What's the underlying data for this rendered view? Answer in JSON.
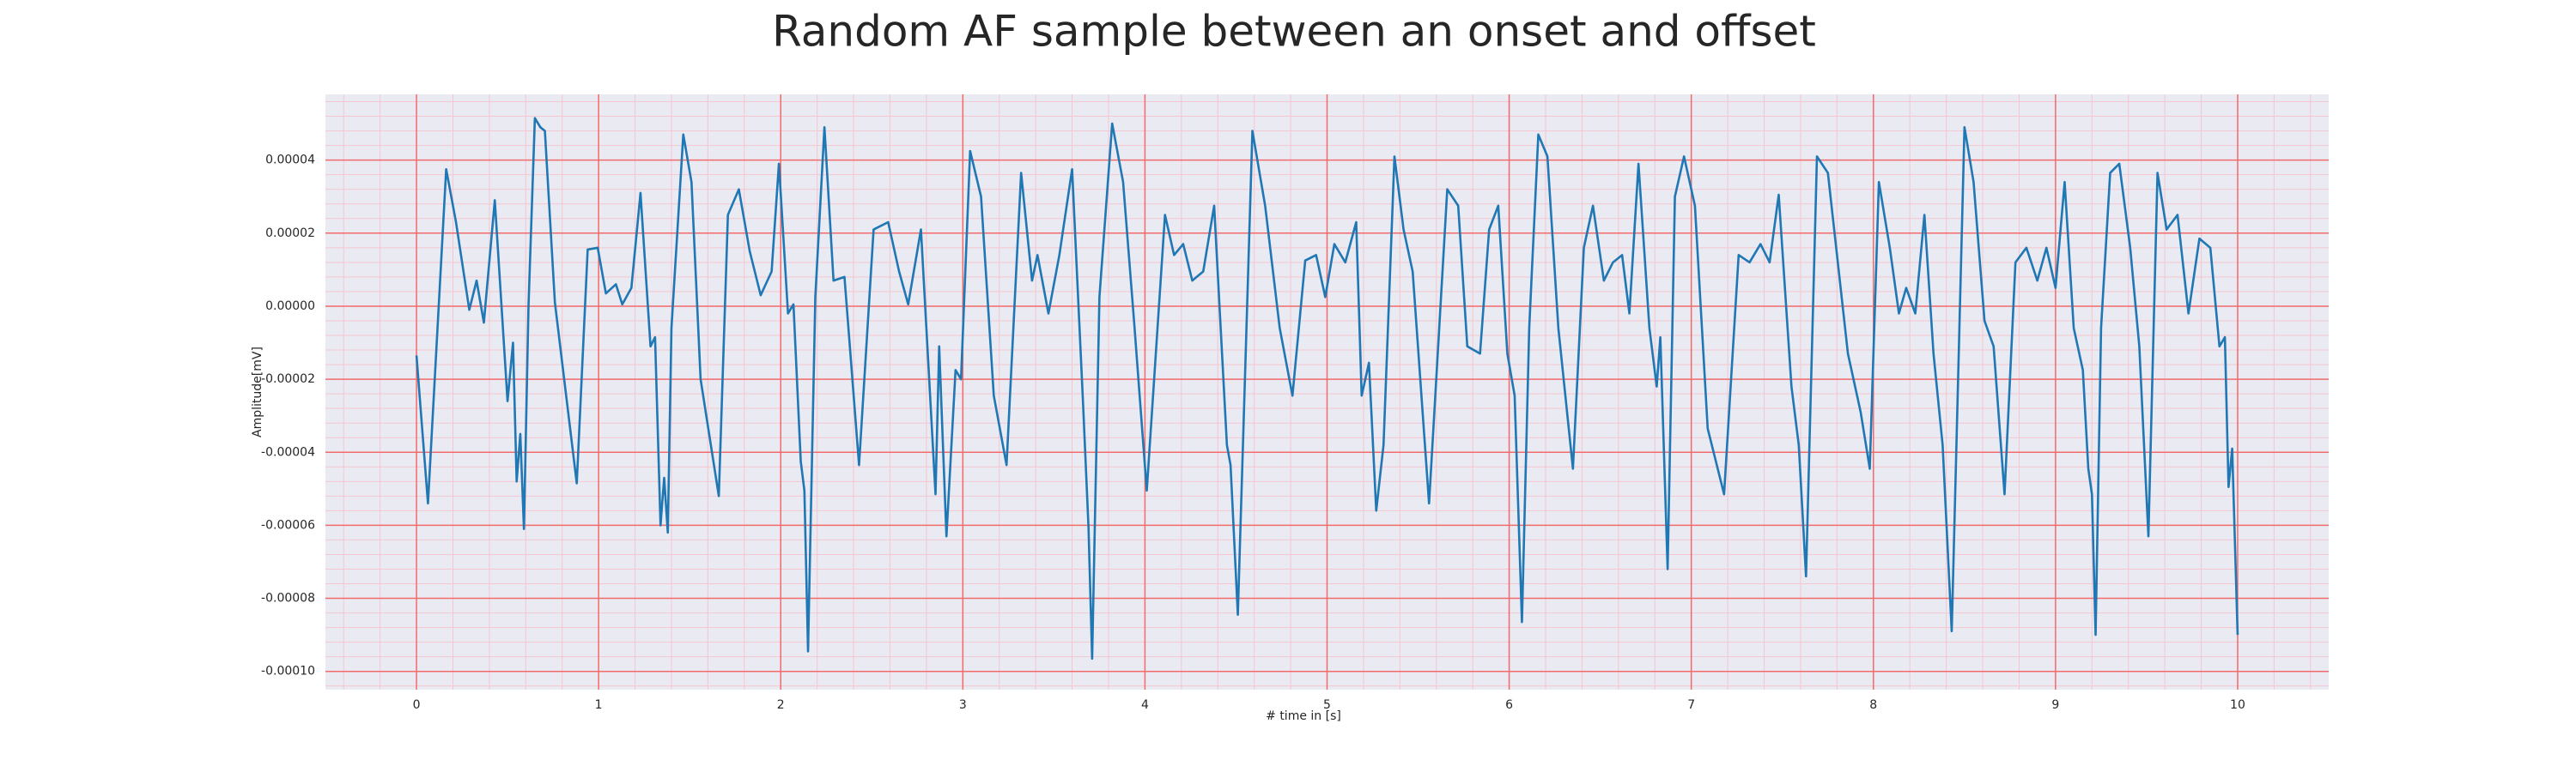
{
  "chart_data": {
    "type": "line",
    "title": "Random AF sample between an onset and offset",
    "xlabel": "# time in [s]",
    "ylabel": "Amplitude[mV]",
    "xlim": [
      -0.5,
      10.5
    ],
    "ylim": [
      -0.000105,
      5.8e-05
    ],
    "xticks": [
      0,
      1,
      2,
      3,
      4,
      5,
      6,
      7,
      8,
      9,
      10
    ],
    "yticks": [
      {
        "value": -0.0001,
        "label": "-0.00010"
      },
      {
        "value": -8e-05,
        "label": "-0.00008"
      },
      {
        "value": -6e-05,
        "label": "-0.00006"
      },
      {
        "value": -4e-05,
        "label": "-0.00004"
      },
      {
        "value": -2e-05,
        "label": "-0.00002"
      },
      {
        "value": 0,
        "label": "0.00000"
      },
      {
        "value": 2e-05,
        "label": "0.00002"
      },
      {
        "value": 4e-05,
        "label": "0.00004"
      }
    ],
    "grid": true,
    "grid_color": "#f26b6b",
    "minor_grid": true,
    "minor_grid_color": "#f5c6cf",
    "background": "#eaeaf2",
    "x": [
      0,
      0.063,
      0.163,
      0.217,
      0.29,
      0.33,
      0.37,
      0.43,
      0.5,
      0.53,
      0.55,
      0.57,
      0.59,
      0.615,
      0.65,
      0.68,
      0.705,
      0.76,
      0.88,
      0.94,
      0.995,
      1.04,
      1.095,
      1.13,
      1.18,
      1.23,
      1.285,
      1.31,
      1.34,
      1.36,
      1.38,
      1.4,
      1.465,
      1.51,
      1.56,
      1.66,
      1.71,
      1.77,
      1.83,
      1.89,
      1.95,
      1.99,
      2.04,
      2.07,
      2.11,
      2.13,
      2.15,
      2.19,
      2.24,
      2.29,
      2.35,
      2.43,
      2.51,
      2.59,
      2.65,
      2.7,
      2.77,
      2.85,
      2.87,
      2.91,
      2.96,
      2.99,
      3.04,
      3.1,
      3.17,
      3.24,
      3.32,
      3.38,
      3.41,
      3.47,
      3.53,
      3.6,
      3.66,
      3.69,
      3.71,
      3.75,
      3.82,
      3.88,
      3.94,
      4.01,
      4.11,
      4.16,
      4.21,
      4.26,
      4.32,
      4.38,
      4.45,
      4.47,
      4.51,
      4.59,
      4.66,
      4.74,
      4.81,
      4.88,
      4.94,
      4.99,
      5.04,
      5.1,
      5.16,
      5.19,
      5.23,
      5.27,
      5.31,
      5.37,
      5.42,
      5.47,
      5.56,
      5.66,
      5.72,
      5.77,
      5.84,
      5.89,
      5.94,
      5.99,
      6.03,
      6.07,
      6.11,
      6.16,
      6.21,
      6.27,
      6.35,
      6.41,
      6.46,
      6.52,
      6.57,
      6.62,
      6.66,
      6.71,
      6.77,
      6.81,
      6.83,
      6.87,
      6.91,
      6.96,
      7.02,
      7.09,
      7.18,
      7.26,
      7.32,
      7.38,
      7.43,
      7.48,
      7.55,
      7.59,
      7.63,
      7.69,
      7.75,
      7.81,
      7.86,
      7.93,
      7.98,
      8.03,
      8.09,
      8.14,
      8.18,
      8.23,
      8.28,
      8.33,
      8.38,
      8.43,
      8.5,
      8.55,
      8.61,
      8.66,
      8.72,
      8.78,
      8.84,
      8.9,
      8.95,
      9.0,
      9.05,
      9.1,
      9.15,
      9.18,
      9.2,
      9.22,
      9.25,
      9.3,
      9.35,
      9.41,
      9.46,
      9.51,
      9.56,
      9.61,
      9.67,
      9.73,
      9.79,
      9.85,
      9.9,
      9.93,
      9.95,
      9.97,
      10.0
    ],
    "series": [
      {
        "name": "AF sample",
        "color": "#1f77b4",
        "values": [
          -1.35e-05,
          -5.4e-05,
          3.75e-05,
          2.3e-05,
          -1e-06,
          7e-06,
          -4.5e-06,
          2.9e-05,
          -2.6e-05,
          -1e-05,
          -4.8e-05,
          -3.5e-05,
          -6.1e-05,
          0,
          5.15e-05,
          4.9e-05,
          4.8e-05,
          1e-06,
          -4.85e-05,
          1.55e-05,
          1.6e-05,
          3.5e-06,
          6e-06,
          5e-07,
          5e-06,
          3.1e-05,
          -1.1e-05,
          -8.5e-06,
          -6e-05,
          -4.7e-05,
          -6.2e-05,
          -6e-06,
          4.7e-05,
          3.4e-05,
          -2e-05,
          -5.2e-05,
          2.5e-05,
          3.2e-05,
          1.5e-05,
          3e-06,
          9.5e-06,
          3.9e-05,
          -2e-06,
          5e-07,
          -4.25e-05,
          -5.05e-05,
          -9.45e-05,
          2.5e-06,
          4.9e-05,
          7e-06,
          8e-06,
          -4.35e-05,
          2.1e-05,
          2.3e-05,
          9.5e-06,
          5e-07,
          2.1e-05,
          -5.15e-05,
          -1.1e-05,
          -6.3e-05,
          -1.75e-05,
          -2e-05,
          4.25e-05,
          3e-05,
          -2.45e-05,
          -4.35e-05,
          3.65e-05,
          7e-06,
          1.4e-05,
          -2e-06,
          1.4e-05,
          3.75e-05,
          -2.65e-05,
          -6.05e-05,
          -9.65e-05,
          2.5e-06,
          5e-05,
          3.4e-05,
          -4e-06,
          -5.05e-05,
          2.5e-05,
          1.4e-05,
          1.7e-05,
          7e-06,
          9.5e-06,
          2.75e-05,
          -3.8e-05,
          -4.35e-05,
          -8.45e-05,
          4.8e-05,
          2.75e-05,
          -6e-06,
          -2.45e-05,
          1.25e-05,
          1.4e-05,
          2.5e-06,
          1.7e-05,
          1.2e-05,
          2.3e-05,
          -2.45e-05,
          -1.55e-05,
          -5.6e-05,
          -3.8e-05,
          4.1e-05,
          2.1e-05,
          9.5e-06,
          -5.4e-05,
          3.2e-05,
          2.75e-05,
          -1.1e-05,
          -1.3e-05,
          2.1e-05,
          2.75e-05,
          -1.3e-05,
          -2.45e-05,
          -8.65e-05,
          -6e-06,
          4.7e-05,
          4.1e-05,
          -6e-06,
          -4.45e-05,
          1.6e-05,
          2.75e-05,
          7e-06,
          1.2e-05,
          1.4e-05,
          -2e-06,
          3.9e-05,
          -6e-06,
          -2.2e-05,
          -8.5e-06,
          -7.2e-05,
          3e-05,
          4.1e-05,
          2.75e-05,
          -3.35e-05,
          -5.15e-05,
          1.4e-05,
          1.2e-05,
          1.7e-05,
          1.2e-05,
          3.05e-05,
          -2.2e-05,
          -3.8e-05,
          -7.4e-05,
          4.1e-05,
          3.65e-05,
          9.5e-06,
          -1.3e-05,
          -2.9e-05,
          -4.45e-05,
          3.4e-05,
          1.6e-05,
          -2e-06,
          5e-06,
          -2e-06,
          2.5e-05,
          -1.3e-05,
          -3.8e-05,
          -8.9e-05,
          4.9e-05,
          3.4e-05,
          -4e-06,
          -1.1e-05,
          -5.15e-05,
          1.2e-05,
          1.6e-05,
          7e-06,
          1.6e-05,
          5e-06,
          3.4e-05,
          -6e-06,
          -1.75e-05,
          -4.45e-05,
          -5.15e-05,
          -9e-05,
          -6e-06,
          3.65e-05,
          3.9e-05,
          1.6e-05,
          -1.1e-05,
          -6.3e-05,
          3.65e-05,
          2.1e-05,
          2.5e-05,
          -2e-06,
          1.85e-05,
          1.6e-05,
          -1.1e-05,
          -8.5e-06,
          -4.95e-05,
          -3.9e-05,
          -9e-05
        ]
      }
    ]
  }
}
